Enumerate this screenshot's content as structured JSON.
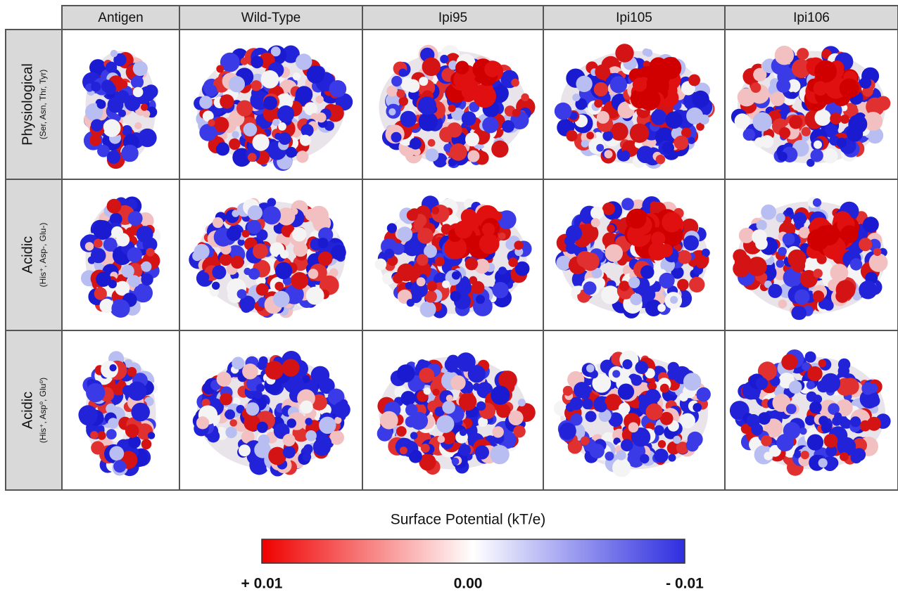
{
  "header": {
    "columns": [
      "Antigen",
      "Wild-Type",
      "Ipi95",
      "Ipi105",
      "Ipi106"
    ]
  },
  "rows": [
    {
      "title": "Physiological",
      "subtitle": "(Ser, Asn, Thr, Tyr)"
    },
    {
      "title": "Acidic",
      "subtitle": "(His⁺, Asp-, Glu-)"
    },
    {
      "title": "Acidic",
      "subtitle": "(His⁺, Asp⁰, Glu⁰)"
    }
  ],
  "colorbar": {
    "title": "Surface Potential (kT/e)",
    "labels": [
      "+ 0.01",
      "0.00",
      "- 0.01"
    ]
  }
}
